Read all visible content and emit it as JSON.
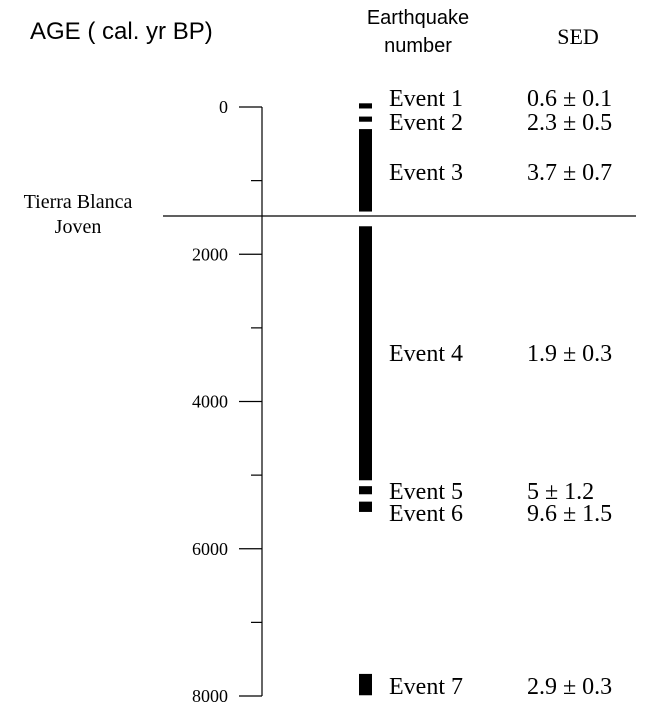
{
  "chart_data": {
    "type": "table",
    "headers": {
      "age": "AGE ( cal. yr BP)",
      "earthquake_line1": "Earthquake",
      "earthquake_line2": "number",
      "sed": "SED"
    },
    "axis": {
      "label": "AGE ( cal. yr BP)",
      "range": [
        0,
        8000
      ],
      "major_ticks": [
        0,
        2000,
        4000,
        6000,
        8000
      ],
      "minor_ticks": [
        1000,
        3000,
        5000,
        7000
      ],
      "inverted": true
    },
    "unit_boundary": {
      "label_line1": "Tierra Blanca",
      "label_line2": "Joven",
      "age": 1480
    },
    "events": [
      {
        "label": "Event 1",
        "start": -50,
        "end": 20,
        "sed": "0.6 ± 0.1"
      },
      {
        "label": "Event 2",
        "start": 130,
        "end": 200,
        "sed": "2.3 ± 0.5"
      },
      {
        "label": "Event 3",
        "start": 300,
        "end": 1420,
        "sed": "3.7 ± 0.7"
      },
      {
        "label": "Event 4",
        "start": 1620,
        "end": 5070,
        "sed": "1.9 ± 0.3"
      },
      {
        "label": "Event 5",
        "start": 5150,
        "end": 5260,
        "sed": "5 ± 1.2"
      },
      {
        "label": "Event 6",
        "start": 5360,
        "end": 5500,
        "sed": "9.6 ± 1.5"
      },
      {
        "label": "Event 7",
        "start": 7700,
        "end": 7990,
        "sed": "2.9 ± 0.3"
      }
    ]
  }
}
